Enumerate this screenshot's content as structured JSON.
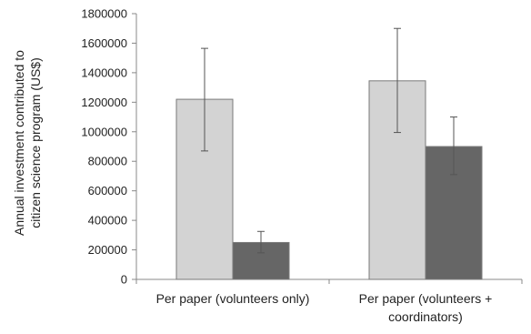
{
  "chart_data": {
    "type": "bar",
    "title": "",
    "xlabel": "",
    "ylabel_lines": [
      "Annual investment contributed to",
      "citizen science program (US$)"
    ],
    "ylim": [
      0,
      1800000
    ],
    "yticks": [
      0,
      200000,
      400000,
      600000,
      800000,
      1000000,
      1200000,
      1400000,
      1600000,
      1800000
    ],
    "categories": [
      [
        "Per paper (volunteers only)"
      ],
      [
        "Per paper (volunteers +",
        "coordinators)"
      ]
    ],
    "series": [
      {
        "color": "#d3d3d3",
        "values": [
          1220000,
          1345000
        ],
        "error_low": [
          870000,
          995000
        ],
        "error_high": [
          1565000,
          1700000
        ]
      },
      {
        "color": "#666666",
        "values": [
          250000,
          900000
        ],
        "error_low": [
          180000,
          710000
        ],
        "error_high": [
          325000,
          1100000
        ]
      }
    ],
    "grid": false,
    "legend": "none"
  }
}
